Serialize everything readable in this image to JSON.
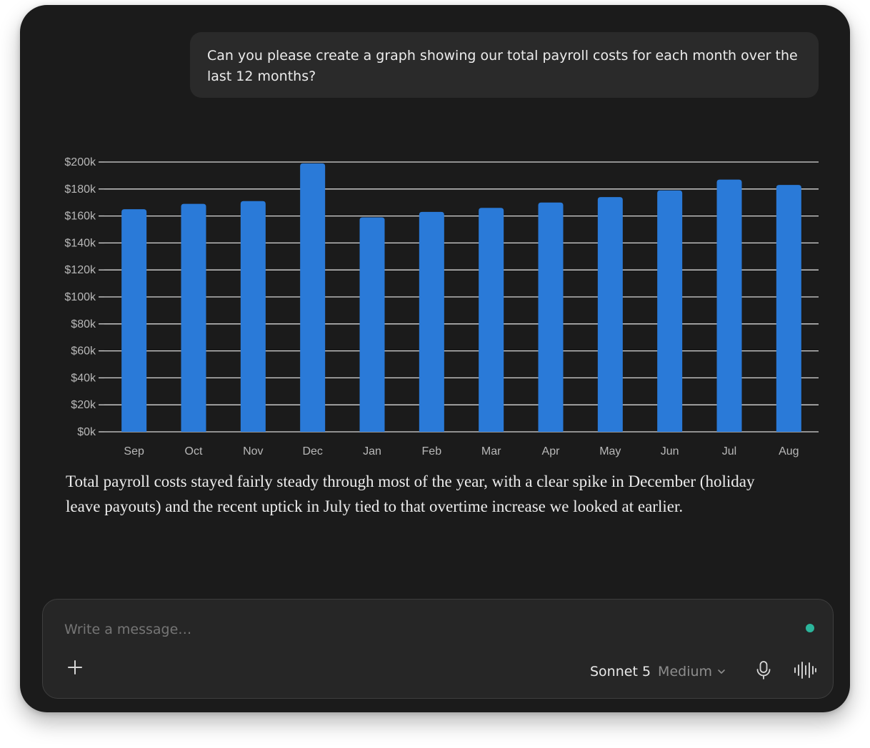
{
  "conversation": {
    "user_message": "Can you please create a graph showing our total payroll costs for each month over the last 12 months?",
    "assistant_reply": "Total payroll costs stayed fairly steady through most of the year, with a clear spike in December (holiday leave payouts) and the recent uptick in July tied to that overtime increase we looked at earlier."
  },
  "chart_data": {
    "type": "bar",
    "title": "",
    "xlabel": "",
    "ylabel": "",
    "categories": [
      "Sep",
      "Oct",
      "Nov",
      "Dec",
      "Jan",
      "Feb",
      "Mar",
      "Apr",
      "May",
      "Jun",
      "Jul",
      "Aug"
    ],
    "values": [
      165000,
      169000,
      171000,
      199000,
      159000,
      163000,
      166000,
      170000,
      174000,
      179000,
      187000,
      183000
    ],
    "ylim": [
      0,
      200000
    ],
    "yticks": [
      0,
      20000,
      40000,
      60000,
      80000,
      100000,
      120000,
      140000,
      160000,
      180000,
      200000
    ],
    "ytick_labels": [
      "$0k",
      "$20k",
      "$40k",
      "$60k",
      "$80k",
      "$100k",
      "$120k",
      "$140k",
      "$160k",
      "$180k",
      "$200k"
    ],
    "grid": true,
    "colors": {
      "bar": "#2a7ad8",
      "grid": "#d8d8d8",
      "tick_text": "#b8b8b8"
    }
  },
  "composer": {
    "placeholder": "Write a message…",
    "model_name": "Sonnet 5",
    "effort": "Medium",
    "icons": {
      "add": "plus-icon",
      "model_menu": "chevron-down-icon",
      "dictation": "microphone-icon",
      "voice_mode": "waveform-icon",
      "status": "status-dot"
    },
    "status_color": "#2bb59b"
  }
}
